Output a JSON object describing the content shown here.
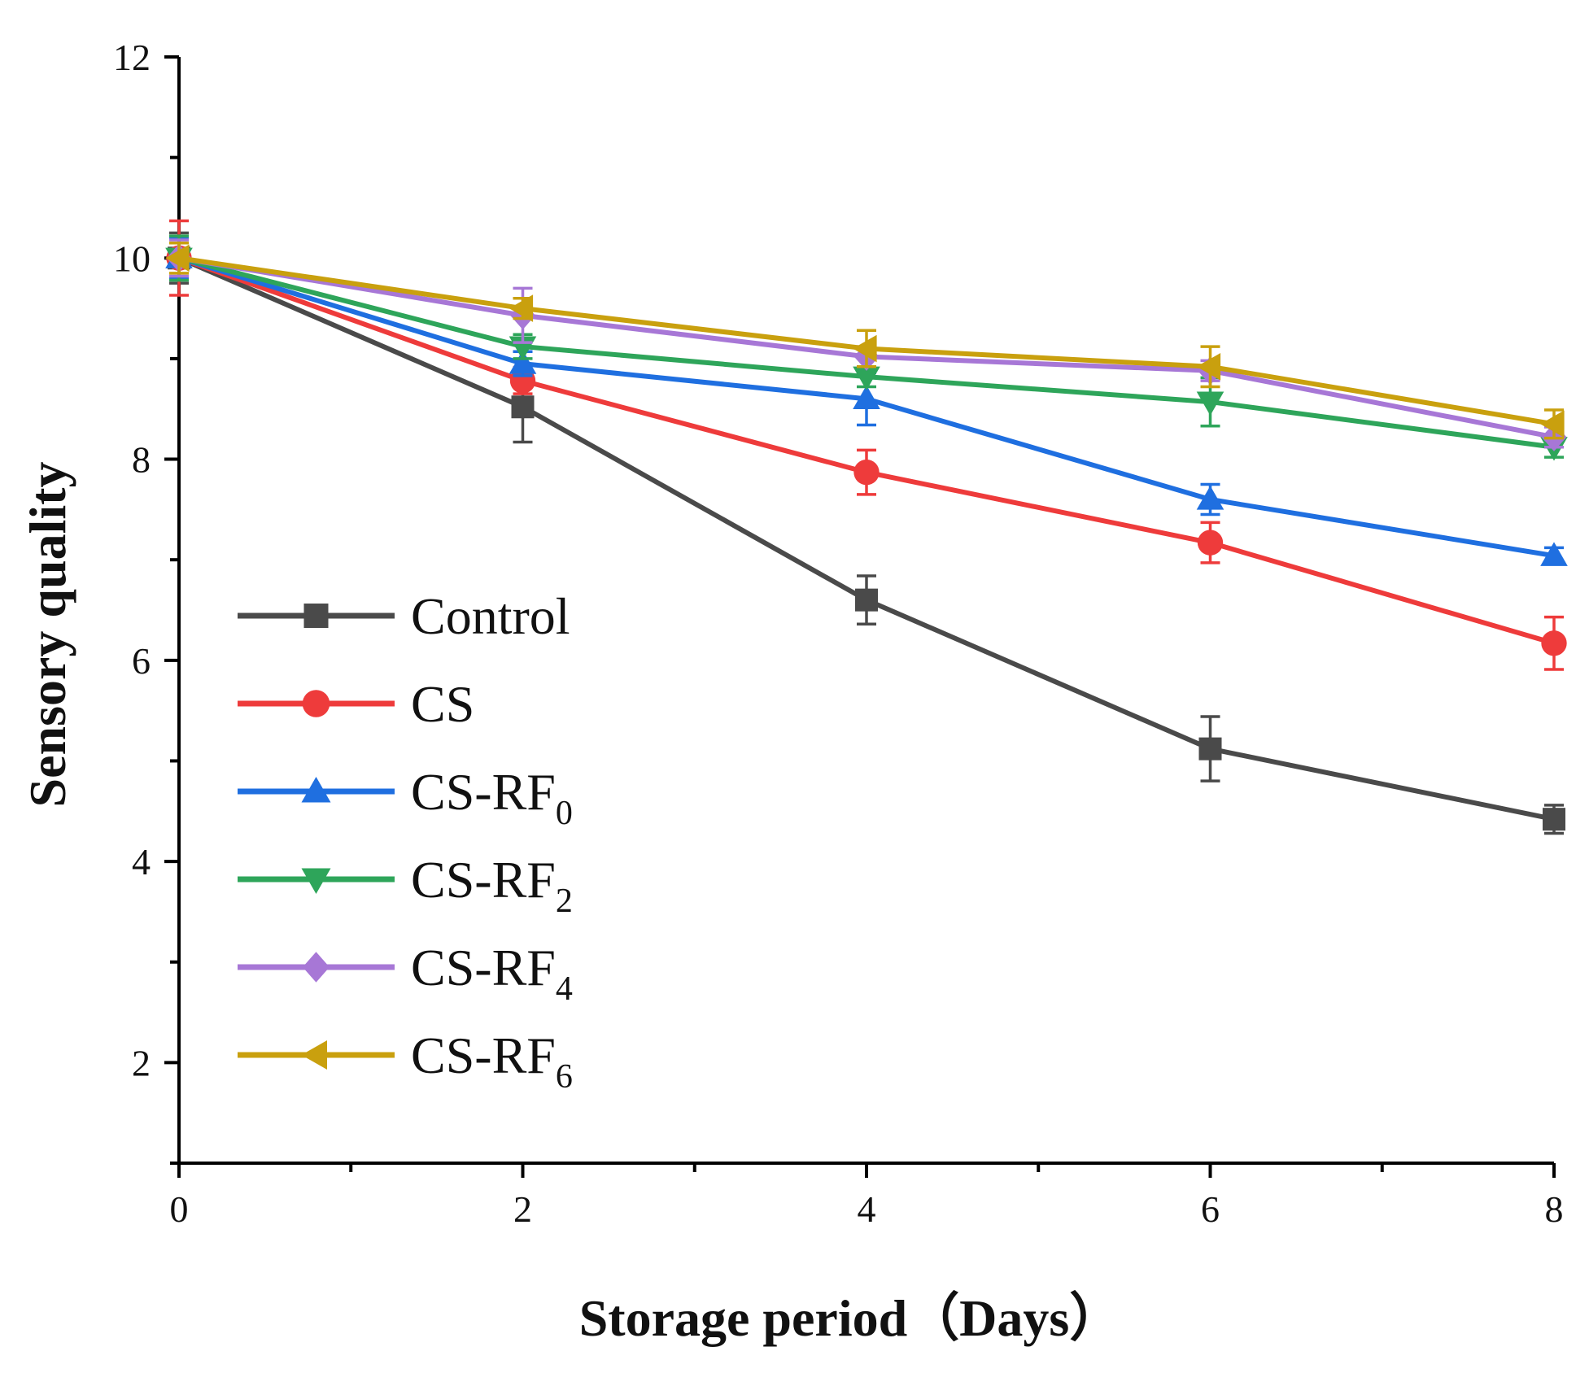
{
  "chart_data": {
    "type": "line",
    "title": "",
    "xlabel": "Storage period（Days）",
    "ylabel": "Sensory quality",
    "xlim": [
      0,
      8
    ],
    "ylim": [
      1,
      12
    ],
    "x_ticks": [
      0,
      2,
      4,
      6,
      8
    ],
    "y_ticks": [
      2,
      4,
      6,
      8,
      10,
      12
    ],
    "x_tick_labels": [
      "0",
      "2",
      "4",
      "6",
      "8"
    ],
    "y_tick_labels": [
      "2",
      "4",
      "6",
      "8",
      "10",
      "12"
    ],
    "legend_position": "left-center",
    "x": [
      0,
      2,
      4,
      6,
      8
    ],
    "series": [
      {
        "name": "Control",
        "name_main": "Control",
        "name_sub": "",
        "color": "#4a4a4a",
        "marker": "square",
        "values": [
          10.0,
          8.52,
          6.6,
          5.12,
          4.42
        ],
        "errors": [
          0.25,
          0.35,
          0.24,
          0.32,
          0.14
        ]
      },
      {
        "name": "CS",
        "name_main": "CS",
        "name_sub": "",
        "color": "#ee3b3b",
        "marker": "circle",
        "values": [
          10.0,
          8.78,
          7.87,
          7.17,
          6.17
        ],
        "errors": [
          0.37,
          0.13,
          0.22,
          0.2,
          0.26
        ]
      },
      {
        "name": "CS-RF0",
        "name_main": "CS-RF",
        "name_sub": "0",
        "color": "#1f6fe0",
        "marker": "triangle-up",
        "values": [
          10.0,
          8.95,
          8.6,
          7.6,
          7.04
        ],
        "errors": [
          0.2,
          0.12,
          0.26,
          0.15,
          0.08
        ]
      },
      {
        "name": "CS-RF2",
        "name_main": "CS-RF",
        "name_sub": "2",
        "color": "#2ea55a",
        "marker": "triangle-down",
        "values": [
          10.0,
          9.12,
          8.82,
          8.57,
          8.12
        ],
        "errors": [
          0.22,
          0.12,
          0.1,
          0.24,
          0.1
        ]
      },
      {
        "name": "CS-RF4",
        "name_main": "CS-RF",
        "name_sub": "4",
        "color": "#a777d6",
        "marker": "diamond",
        "values": [
          10.0,
          9.43,
          9.02,
          8.88,
          8.22
        ],
        "errors": [
          0.18,
          0.27,
          0.1,
          0.1,
          0.1
        ]
      },
      {
        "name": "CS-RF6",
        "name_main": "CS-RF",
        "name_sub": "6",
        "color": "#c9a00e",
        "marker": "triangle-left",
        "values": [
          10.0,
          9.5,
          9.1,
          8.92,
          8.35
        ],
        "errors": [
          0.15,
          0.1,
          0.18,
          0.2,
          0.14
        ]
      }
    ]
  }
}
